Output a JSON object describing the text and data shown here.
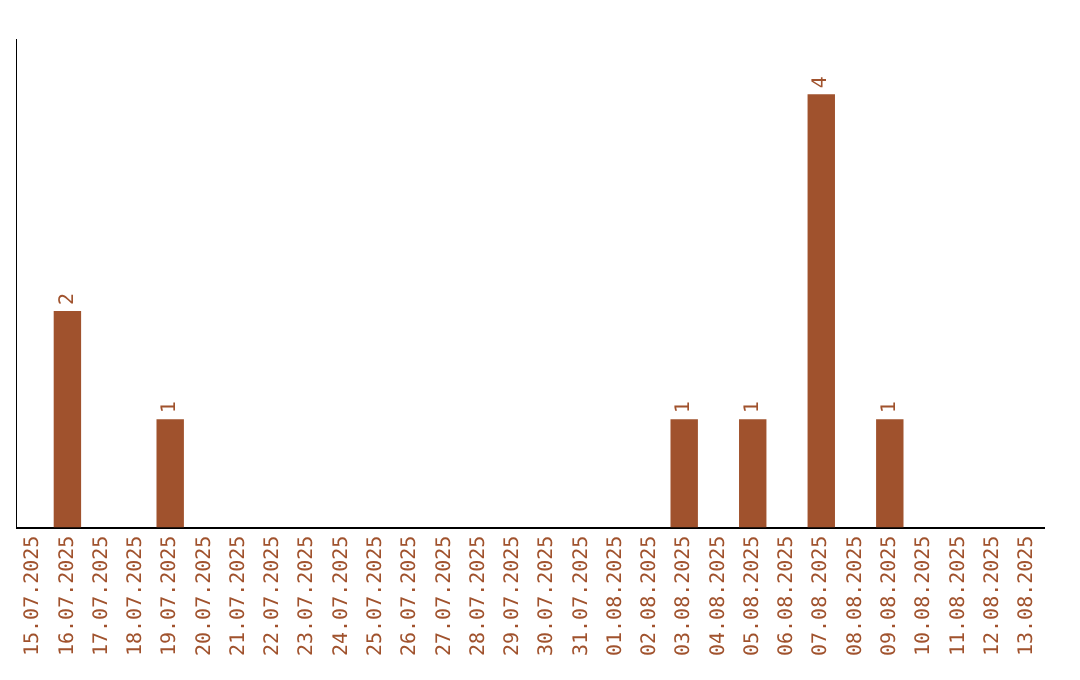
{
  "chart_data": {
    "type": "bar",
    "categories": [
      "15.07.2025",
      "16.07.2025",
      "17.07.2025",
      "18.07.2025",
      "19.07.2025",
      "20.07.2025",
      "21.07.2025",
      "22.07.2025",
      "23.07.2025",
      "24.07.2025",
      "25.07.2025",
      "26.07.2025",
      "27.07.2025",
      "28.07.2025",
      "29.07.2025",
      "30.07.2025",
      "31.07.2025",
      "01.08.2025",
      "02.08.2025",
      "03.08.2025",
      "04.08.2025",
      "05.08.2025",
      "06.08.2025",
      "07.08.2025",
      "08.08.2025",
      "09.08.2025",
      "10.08.2025",
      "11.08.2025",
      "12.08.2025",
      "13.08.2025"
    ],
    "values": [
      0,
      2,
      0,
      0,
      1,
      0,
      0,
      0,
      0,
      0,
      0,
      0,
      0,
      0,
      0,
      0,
      0,
      0,
      0,
      1,
      0,
      1,
      0,
      4,
      0,
      1,
      0,
      0,
      0,
      0
    ],
    "value_labels": [
      null,
      "2",
      null,
      null,
      "1",
      null,
      null,
      null,
      null,
      null,
      null,
      null,
      null,
      null,
      null,
      null,
      null,
      null,
      null,
      "1",
      null,
      "1",
      null,
      "4",
      null,
      "1",
      null,
      null,
      null,
      null
    ],
    "color": "#a0522d",
    "tick_labels": "x",
    "grid": false,
    "legend": false
  }
}
